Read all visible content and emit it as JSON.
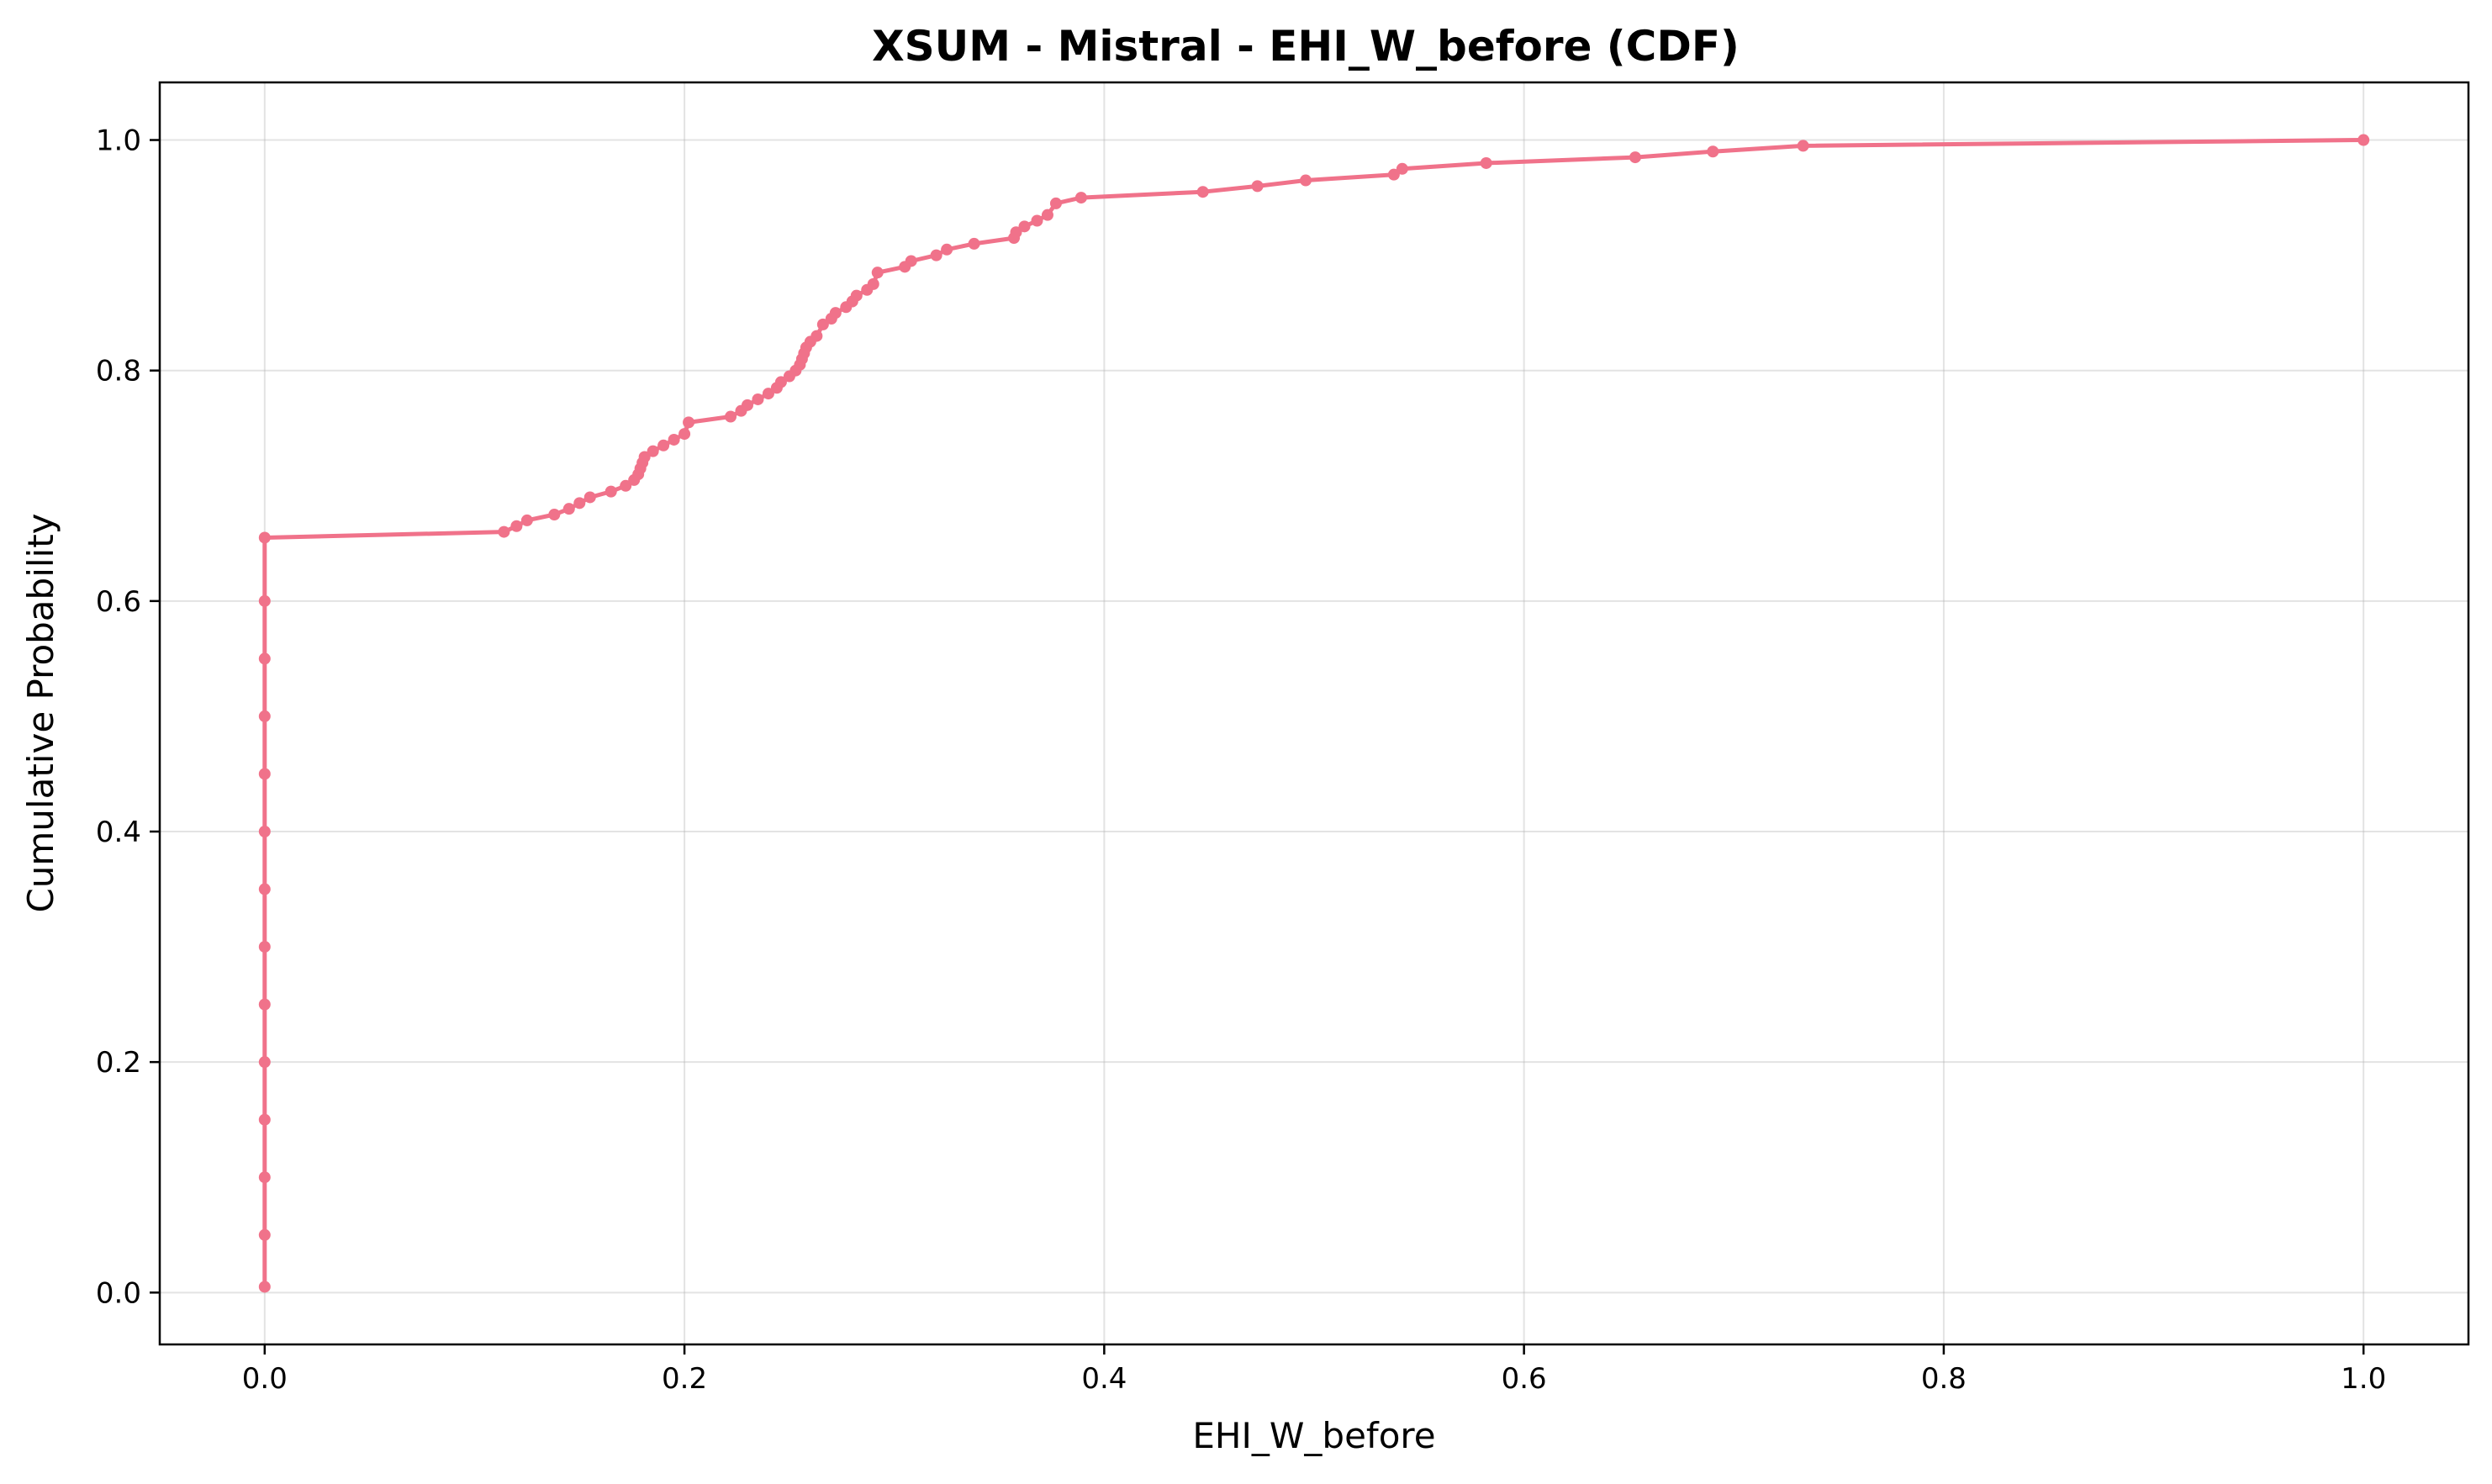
{
  "chart_data": {
    "type": "line",
    "title": "XSUM - Mistral - EHI_W_before (CDF)",
    "xlabel": "EHI_W_before",
    "ylabel": "Cumulative Probability",
    "xlim": [
      -0.05,
      1.05
    ],
    "ylim": [
      -0.045,
      1.05
    ],
    "xticks": [
      0.0,
      0.2,
      0.4,
      0.6,
      0.8,
      1.0
    ],
    "xtick_labels": [
      "0.0",
      "0.2",
      "0.4",
      "0.6",
      "0.8",
      "1.0"
    ],
    "yticks": [
      0.0,
      0.2,
      0.4,
      0.6,
      0.8,
      1.0
    ],
    "ytick_labels": [
      "0.0",
      "0.2",
      "0.4",
      "0.6",
      "0.8",
      "1.0"
    ],
    "grid": true,
    "color": "#f0728a",
    "series": [
      {
        "x": [
          0.0,
          0.0,
          0.0,
          0.0,
          0.0,
          0.0,
          0.0,
          0.0,
          0.0,
          0.0,
          0.0,
          0.0,
          0.0,
          0.0,
          0.114,
          0.12,
          0.125,
          0.138,
          0.145,
          0.15,
          0.155,
          0.165,
          0.172,
          0.176,
          0.178,
          0.179,
          0.18,
          0.181,
          0.185,
          0.19,
          0.195,
          0.2,
          0.202,
          0.222,
          0.227,
          0.23,
          0.235,
          0.24,
          0.244,
          0.246,
          0.25,
          0.253,
          0.255,
          0.256,
          0.257,
          0.258,
          0.26,
          0.263,
          0.266,
          0.27,
          0.272,
          0.277,
          0.28,
          0.282,
          0.287,
          0.29,
          0.292,
          0.305,
          0.308,
          0.32,
          0.325,
          0.338,
          0.357,
          0.358,
          0.362,
          0.368,
          0.373,
          0.377,
          0.389,
          0.447,
          0.473,
          0.496,
          0.538,
          0.542,
          0.582,
          0.653,
          0.69,
          0.733,
          1.0
        ],
        "y": [
          0.005,
          0.05,
          0.1,
          0.15,
          0.2,
          0.25,
          0.3,
          0.35,
          0.4,
          0.45,
          0.5,
          0.55,
          0.6,
          0.655,
          0.66,
          0.665,
          0.67,
          0.675,
          0.68,
          0.685,
          0.69,
          0.695,
          0.7,
          0.705,
          0.71,
          0.715,
          0.72,
          0.725,
          0.73,
          0.735,
          0.74,
          0.745,
          0.755,
          0.76,
          0.765,
          0.77,
          0.775,
          0.78,
          0.785,
          0.79,
          0.795,
          0.8,
          0.805,
          0.81,
          0.815,
          0.82,
          0.825,
          0.83,
          0.84,
          0.845,
          0.85,
          0.855,
          0.86,
          0.865,
          0.87,
          0.875,
          0.885,
          0.89,
          0.895,
          0.9,
          0.905,
          0.91,
          0.915,
          0.92,
          0.925,
          0.93,
          0.935,
          0.945,
          0.95,
          0.955,
          0.96,
          0.965,
          0.97,
          0.975,
          0.98,
          0.985,
          0.99,
          0.995,
          1.0
        ]
      }
    ]
  }
}
